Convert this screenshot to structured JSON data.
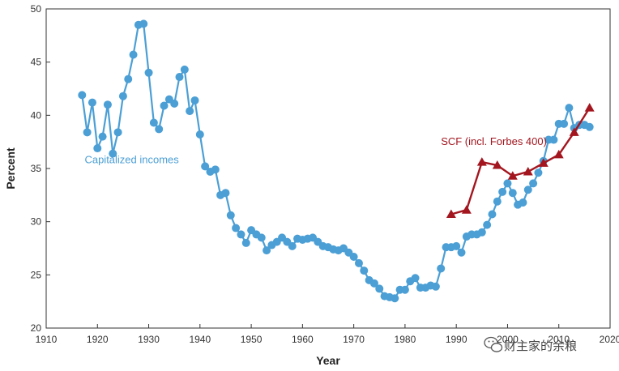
{
  "chart_data": {
    "type": "line",
    "title": "",
    "xlabel": "Year",
    "ylabel": "Percent",
    "xlim": [
      1910,
      2020
    ],
    "ylim": [
      20,
      50
    ],
    "x_ticks": [
      1910,
      1920,
      1930,
      1940,
      1950,
      1960,
      1970,
      1980,
      1990,
      2000,
      2010,
      2020
    ],
    "x_tick_labels": [
      "1910",
      "1920",
      "1930",
      "1940",
      "1950",
      "1960",
      "1970",
      "1980",
      "1990",
      "2000",
      "2010",
      "2020"
    ],
    "y_ticks": [
      20,
      25,
      30,
      35,
      40,
      45,
      50
    ],
    "y_tick_labels": [
      "20",
      "25",
      "30",
      "35",
      "40",
      "45",
      "50"
    ],
    "grid": false,
    "series": [
      {
        "name": "Capitalized incomes",
        "color": "#4b9fd5",
        "marker": "circle",
        "x": [
          1917,
          1918,
          1919,
          1920,
          1921,
          1922,
          1923,
          1924,
          1925,
          1926,
          1927,
          1928,
          1929,
          1930,
          1931,
          1932,
          1933,
          1934,
          1935,
          1936,
          1937,
          1938,
          1939,
          1940,
          1941,
          1942,
          1943,
          1944,
          1945,
          1946,
          1947,
          1948,
          1949,
          1950,
          1951,
          1952,
          1953,
          1954,
          1955,
          1956,
          1957,
          1958,
          1959,
          1960,
          1961,
          1962,
          1963,
          1964,
          1965,
          1966,
          1967,
          1968,
          1969,
          1970,
          1971,
          1972,
          1973,
          1974,
          1975,
          1976,
          1977,
          1978,
          1979,
          1980,
          1981,
          1982,
          1983,
          1984,
          1985,
          1986,
          1987,
          1988,
          1989,
          1990,
          1991,
          1992,
          1993,
          1994,
          1995,
          1996,
          1997,
          1998,
          1999,
          2000,
          2001,
          2002,
          2003,
          2004,
          2005,
          2006,
          2007,
          2008,
          2009,
          2010,
          2011,
          2012,
          2013,
          2014,
          2015,
          2016
        ],
        "y": [
          41.9,
          38.4,
          41.2,
          36.9,
          38.0,
          41.0,
          36.4,
          38.4,
          41.8,
          43.4,
          45.7,
          48.5,
          48.6,
          44.0,
          39.3,
          38.7,
          40.9,
          41.5,
          41.1,
          43.6,
          44.3,
          40.4,
          41.4,
          38.2,
          35.2,
          34.7,
          34.9,
          32.5,
          32.7,
          30.6,
          29.4,
          28.8,
          28.0,
          29.2,
          28.8,
          28.5,
          27.3,
          27.8,
          28.1,
          28.5,
          28.1,
          27.7,
          28.4,
          28.3,
          28.4,
          28.5,
          28.1,
          27.7,
          27.6,
          27.4,
          27.3,
          27.5,
          27.1,
          26.7,
          26.1,
          25.4,
          24.5,
          24.2,
          23.7,
          23.0,
          22.9,
          22.8,
          23.6,
          23.6,
          24.4,
          24.7,
          23.8,
          23.8,
          24.0,
          23.9,
          25.6,
          27.6,
          27.6,
          27.7,
          27.1,
          28.6,
          28.8,
          28.8,
          29.0,
          29.7,
          30.7,
          31.9,
          32.8,
          33.6,
          32.7,
          31.6,
          31.8,
          33.0,
          33.6,
          34.6,
          35.7,
          37.7,
          37.7,
          39.2,
          39.2,
          40.7,
          38.8,
          39.1,
          39.1,
          38.9
        ]
      },
      {
        "name": "SCF (incl. Forbes 400)",
        "color": "#a3161f",
        "marker": "triangle",
        "x": [
          1989,
          1992,
          1995,
          1998,
          2001,
          2004,
          2007,
          2010,
          2013,
          2016
        ],
        "y": [
          30.7,
          31.1,
          35.6,
          35.3,
          34.3,
          34.7,
          35.5,
          36.3,
          38.4,
          40.7
        ]
      }
    ],
    "annotations": [
      {
        "text": "Capitalized incomes",
        "x": 1917.5,
        "y": 35.5,
        "color": "#4b9fd5"
      },
      {
        "text": "SCF (incl. Forbes 400)",
        "x": 1987,
        "y": 37.2,
        "color": "#a3161f"
      }
    ]
  },
  "watermark": {
    "text": "财主家的余粮",
    "icon": "wechat-icon"
  }
}
